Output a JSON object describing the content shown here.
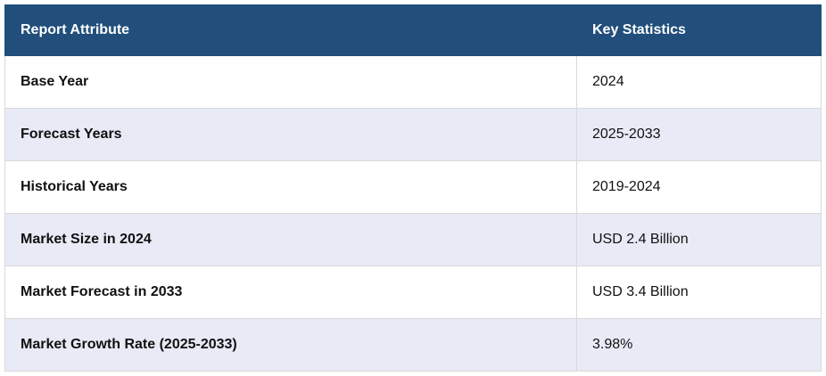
{
  "table": {
    "header": [
      "Report Attribute",
      "Key Statistics"
    ],
    "rows": [
      [
        "Base Year",
        "2024"
      ],
      [
        "Forecast Years",
        "2025-2033"
      ],
      [
        "Historical Years",
        "2019-2024"
      ],
      [
        "Market Size in 2024",
        "USD 2.4 Billion"
      ],
      [
        "Market Forecast in 2033",
        "USD 3.4 Billion"
      ],
      [
        "Market Growth Rate (2025-2033)",
        "3.98%"
      ]
    ]
  }
}
